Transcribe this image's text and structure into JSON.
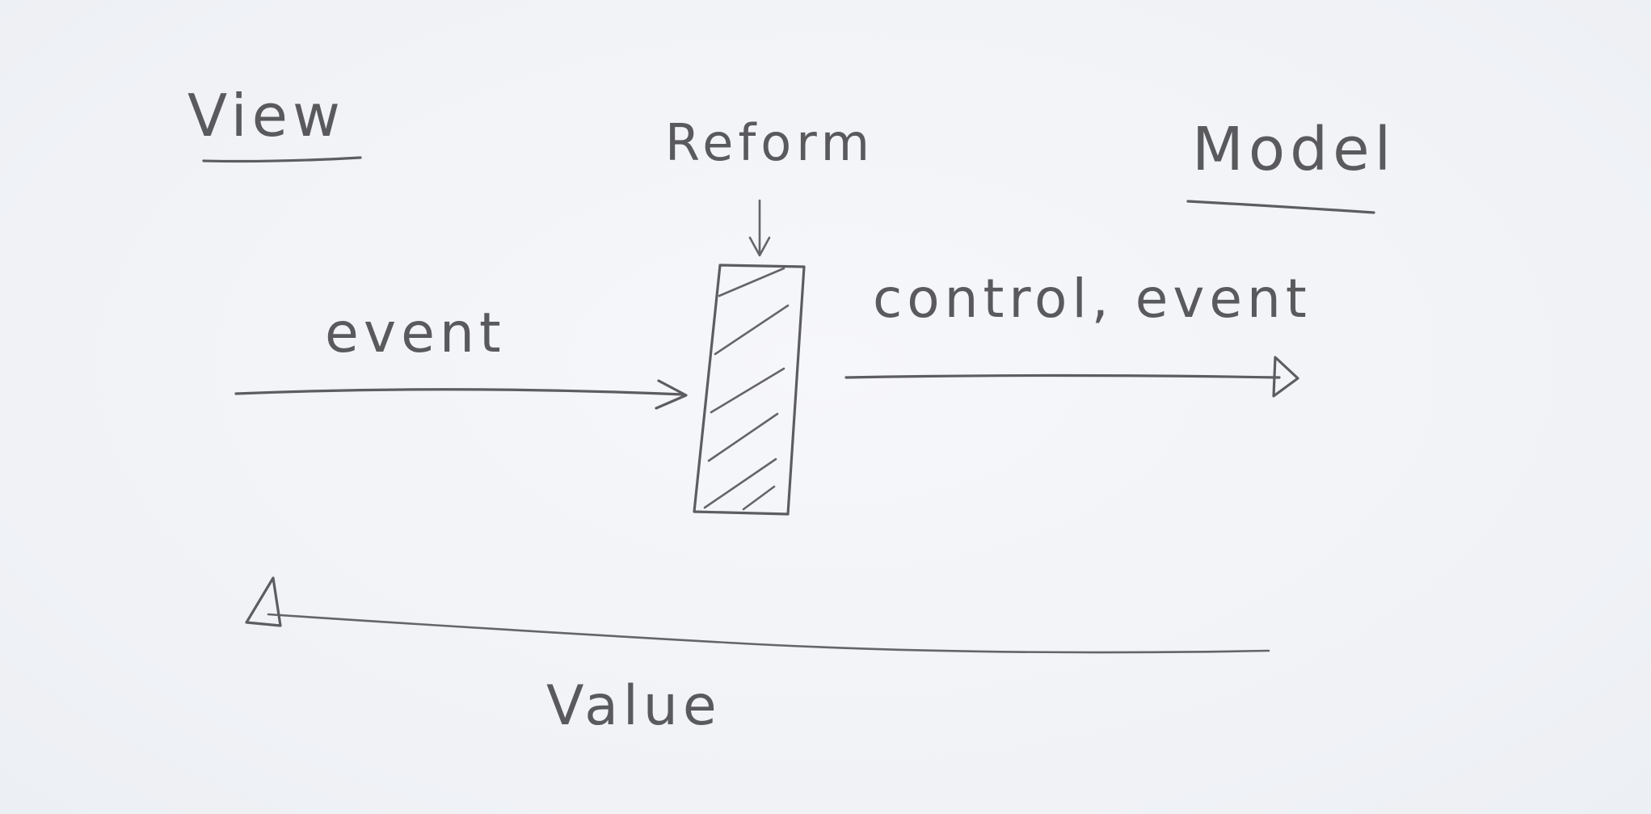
{
  "labels": {
    "view": "View",
    "reform": "Reform",
    "model": "Model",
    "event_in": "event",
    "event_out": "control, event",
    "value": "Value"
  },
  "colors": {
    "paper": "#f3f5f8",
    "pencil": "#5d5d60"
  }
}
